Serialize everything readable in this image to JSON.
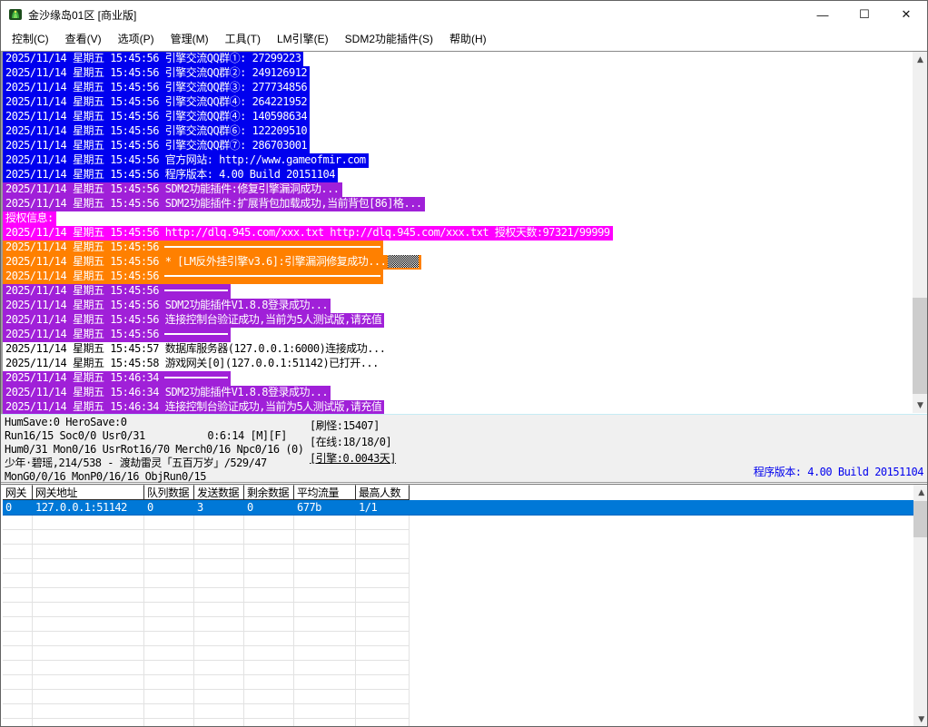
{
  "window": {
    "title": "金沙缘岛01区 [商业版]",
    "controls": {
      "minimize": "—",
      "maximize": "☐",
      "close": "✕"
    }
  },
  "menu": {
    "items": [
      "控制(C)",
      "查看(V)",
      "选项(P)",
      "管理(M)",
      "工具(T)",
      "LM引擎(E)",
      "SDM2功能插件(S)",
      "帮助(H)"
    ]
  },
  "log": {
    "lines": [
      {
        "text": "2025/11/14 星期五 15:45:56 引擎交流QQ群①: 27299223",
        "style": "blue",
        "kind": "text"
      },
      {
        "text": "2025/11/14 星期五 15:45:56 引擎交流QQ群②: 249126912",
        "style": "blue",
        "kind": "text"
      },
      {
        "text": "2025/11/14 星期五 15:45:56 引擎交流QQ群③: 277734856",
        "style": "blue",
        "kind": "text"
      },
      {
        "text": "2025/11/14 星期五 15:45:56 引擎交流QQ群④: 264221952",
        "style": "blue",
        "kind": "text"
      },
      {
        "text": "2025/11/14 星期五 15:45:56 引擎交流QQ群④: 140598634",
        "style": "blue",
        "kind": "text"
      },
      {
        "text": "2025/11/14 星期五 15:45:56 引擎交流QQ群⑥: 122209510",
        "style": "blue",
        "kind": "text"
      },
      {
        "text": "2025/11/14 星期五 15:45:56 引擎交流QQ群⑦: 286703001",
        "style": "blue",
        "kind": "text"
      },
      {
        "text": "2025/11/14 星期五 15:45:56 官方网站: http://www.gameofmir.com",
        "style": "blue",
        "kind": "text"
      },
      {
        "text": "2025/11/14 星期五 15:45:56 程序版本: 4.00 Build 20151104",
        "style": "blue",
        "kind": "text"
      },
      {
        "text": "2025/11/14 星期五 15:45:56 SDM2功能插件:修复引擎漏洞成功...",
        "style": "purple",
        "kind": "text"
      },
      {
        "text": "2025/11/14 星期五 15:45:56 SDM2功能插件:扩展背包加载成功,当前背包[86]格...",
        "style": "purple",
        "kind": "text"
      },
      {
        "text": "授权信息:",
        "style": "magenta",
        "kind": "text"
      },
      {
        "text": "2025/11/14 星期五 15:45:56 http://dlq.945.com/xxx.txt http://dlq.945.com/xxx.txt 授权天数:97321/99999",
        "style": "magenta",
        "kind": "text"
      },
      {
        "text": "2025/11/14 星期五 15:45:56",
        "style": "orange",
        "kind": "rule",
        "rule": "long"
      },
      {
        "text": "2025/11/14 星期五 15:45:56 * [LM反外挂引擎v3.6]:引擎漏洞修复成功...",
        "style": "orange",
        "kind": "text",
        "box": true
      },
      {
        "text": "2025/11/14 星期五 15:45:56",
        "style": "orange",
        "kind": "rule",
        "rule": "long"
      },
      {
        "text": "2025/11/14 星期五 15:45:56",
        "style": "purple",
        "kind": "rule",
        "rule": "short"
      },
      {
        "text": "2025/11/14 星期五 15:45:56 SDM2功能插件V1.8.8登录成功...",
        "style": "purple",
        "kind": "text"
      },
      {
        "text": "2025/11/14 星期五 15:45:56 连接控制台验证成功,当前为5人测试版,请充值",
        "style": "purple",
        "kind": "text"
      },
      {
        "text": "2025/11/14 星期五 15:45:56",
        "style": "purple",
        "kind": "rule",
        "rule": "short"
      },
      {
        "text": "2025/11/14 星期五 15:45:57 数据库服务器(127.0.0.1:6000)连接成功...",
        "style": "plain",
        "kind": "text"
      },
      {
        "text": "2025/11/14 星期五 15:45:58 游戏网关[0](127.0.0.1:51142)已打开...",
        "style": "plain",
        "kind": "text"
      },
      {
        "text": "2025/11/14 星期五 15:46:34",
        "style": "purple",
        "kind": "rule",
        "rule": "short"
      },
      {
        "text": "2025/11/14 星期五 15:46:34 SDM2功能插件V1.8.8登录成功...",
        "style": "purple",
        "kind": "text"
      },
      {
        "text": "2025/11/14 星期五 15:46:34 连接控制台验证成功,当前为5人测试版,请充值",
        "style": "purple",
        "kind": "text"
      }
    ]
  },
  "status": {
    "line1": "HumSave:0 HeroSave:0",
    "line2": "Run16/15 Soc0/0 Usr0/31",
    "line2_clock": "0:6:14 [M][F]",
    "line3": "Hum0/31 Mon0/16 UsrRot16/70 Merch0/16 Npc0/16 (0)",
    "line4": "少年·碧瑶,214/538 - 渡劫雷灵「五百万岁」/529/47",
    "line5": "MonG0/0/16 MonP0/16/16 ObjRun0/15",
    "badge_mobs": "[刷怪:15407]",
    "badge_online": "[在线:18/18/0]",
    "badge_engine": "[引擎:0.0043天]",
    "version_label": "程序版本: 4.00 Build 20151104"
  },
  "gateway_table": {
    "columns": [
      "网关",
      "网关地址",
      "队列数据",
      "发送数据",
      "剩余数据",
      "平均流量",
      "最高人数"
    ],
    "rows": [
      [
        "0",
        "127.0.0.1:51142",
        "0",
        "3",
        "0",
        "677b",
        "1/1"
      ]
    ]
  },
  "colors": {
    "log_blue": "#0000EE",
    "log_purple": "#A020D8",
    "log_magenta": "#FF00FF",
    "log_orange": "#FF8000",
    "selection_blue": "#0078D7",
    "version_text": "#0000EE"
  }
}
